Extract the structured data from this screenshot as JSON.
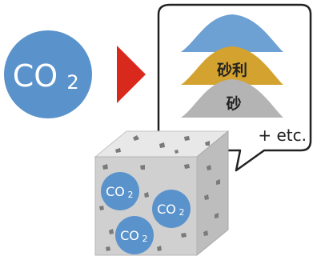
{
  "co2_large": {
    "main": "CO",
    "subscript": "2"
  },
  "co2_small": {
    "main": "CO",
    "subscript": "2"
  },
  "bubble": {
    "layer_gravel_label": "砂利",
    "layer_sand_label": "砂",
    "etc_label": "+ etc."
  },
  "colors": {
    "co2_blue": "#5a93cc",
    "arrow_red": "#d9291c",
    "layer_top_blue": "#6da0d3",
    "layer_gravel_gold": "#d4a22f",
    "layer_sand_gray": "#b4b4b4",
    "concrete_front": "#d0d0d0",
    "concrete_top": "#e8e8e8",
    "concrete_side": "#bdbdbd"
  }
}
